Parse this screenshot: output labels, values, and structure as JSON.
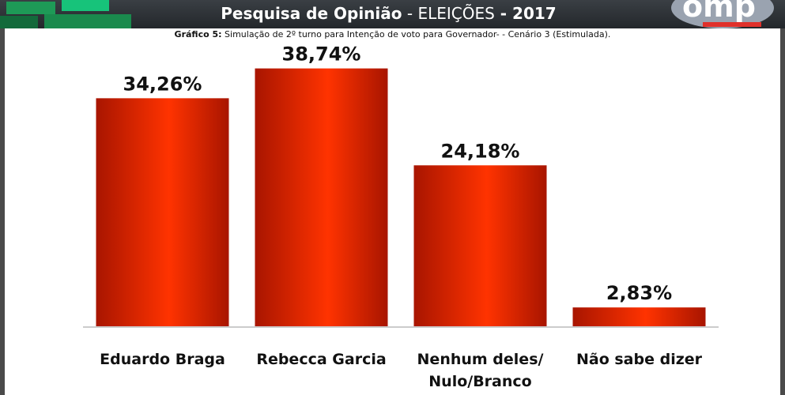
{
  "header": {
    "title_bold": "Pesquisa de Opinião",
    "title_sep": " - ",
    "title_normal": "ELEIÇÕES",
    "title_dash": " - ",
    "title_year": "2017",
    "logo_text": "omp"
  },
  "subtitle": {
    "prefix": "Gráfico 5:",
    "text": " Simulação de 2º turno para Intenção de voto para Governador- - Cenário 3 (Estimulada)."
  },
  "chart_data": {
    "type": "bar",
    "title": "Gráfico 5: Simulação de 2º turno para Intenção de voto para Governador- - Cenário 3 (Estimulada).",
    "categories": [
      [
        "Eduardo Braga"
      ],
      [
        "Rebecca Garcia"
      ],
      [
        "Nenhum deles/",
        "Nulo/Branco"
      ],
      [
        "Não sabe dizer"
      ]
    ],
    "values": [
      34.26,
      38.74,
      24.18,
      2.83
    ],
    "value_labels": [
      "34,26%",
      "38,74%",
      "24,18%",
      "2,83%"
    ],
    "ylim": [
      0,
      40
    ],
    "grid": false,
    "legend": "none",
    "bar_color": "#ff3300",
    "bar_dark": "#a81500"
  }
}
